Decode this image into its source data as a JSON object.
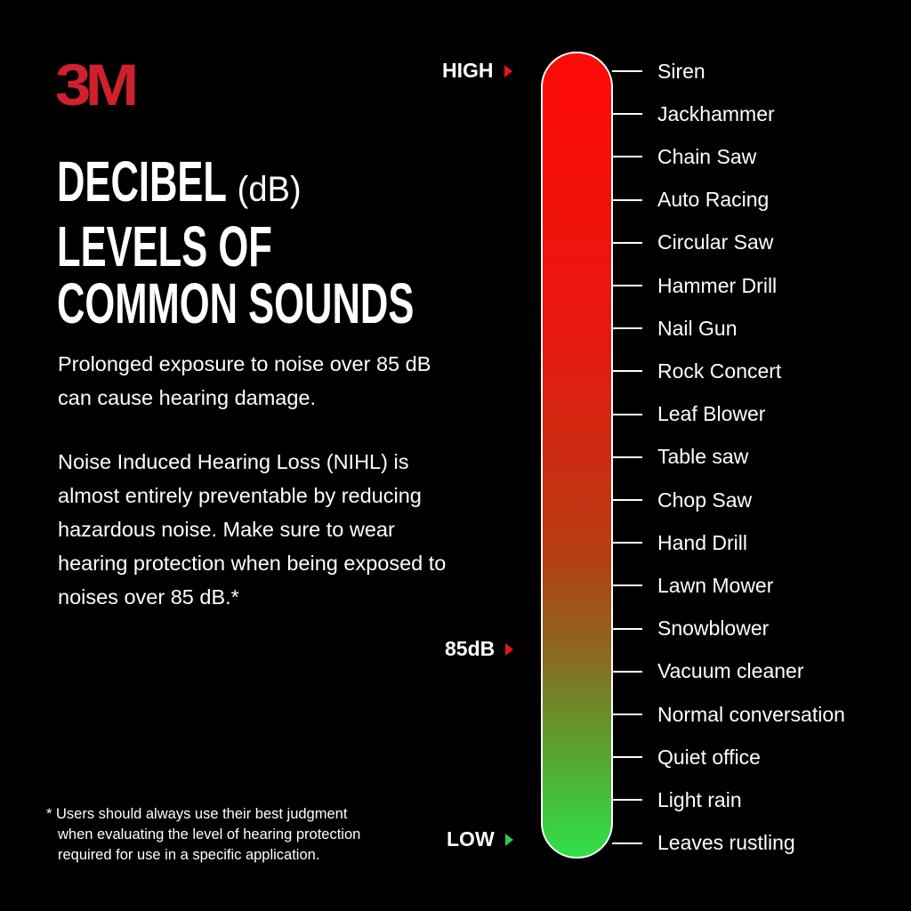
{
  "logo": "3M",
  "title": {
    "line1": "DECIBEL",
    "unit": "(dB)",
    "line2": "LEVELS OF",
    "line3": "COMMON SOUNDS"
  },
  "paragraph1": "Prolonged exposure to noise over 85 dB can cause hearing damage.",
  "paragraph2": "Noise Induced Hearing Loss (NIHL) is almost entirely preventable by reducing hazardous noise.  Make sure to wear hearing protection when being exposed to noises over 85 dB.*",
  "footnote": [
    "* Users should always use their best judgment",
    "when evaluating the level of hearing protection",
    "required for use in a specific application."
  ],
  "markers": {
    "high": "HIGH",
    "mid": "85dB",
    "low": "LOW"
  },
  "colors": {
    "brand": "#d0202e",
    "scale_top": "#ff0a0a",
    "scale_bottom": "#2ee04a",
    "high_marker": "#e8151b",
    "low_marker": "#2ecc4a"
  },
  "sounds": [
    "Siren",
    "Jackhammer",
    "Chain Saw",
    "Auto Racing",
    "Circular Saw",
    "Hammer Drill",
    "Nail Gun",
    "Rock Concert",
    "Leaf Blower",
    "Table saw",
    "Chop Saw",
    "Hand Drill",
    "Lawn Mower",
    "Snowblower",
    "Vacuum cleaner",
    "Normal conversation",
    "Quiet office",
    "Light rain",
    "Leaves rustling"
  ]
}
